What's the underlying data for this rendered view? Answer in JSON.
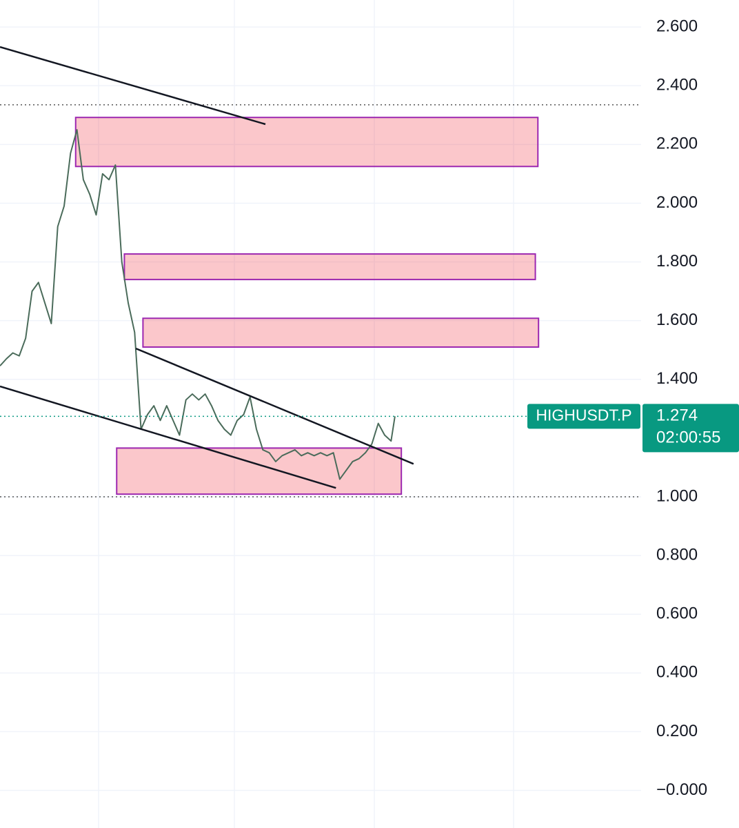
{
  "chart_data": {
    "type": "line",
    "x": [
      0,
      1,
      2,
      3,
      4,
      5,
      6,
      7,
      8,
      9,
      10,
      11,
      12,
      13,
      14,
      15,
      16,
      17,
      18,
      19,
      20,
      21,
      22,
      23,
      24,
      25,
      26,
      27,
      28,
      29,
      30,
      31,
      32,
      33,
      34,
      35,
      36,
      37,
      38,
      39,
      40,
      41,
      42,
      43,
      44,
      45,
      46,
      47,
      48,
      49,
      50,
      51,
      52,
      53,
      54,
      55,
      56,
      57,
      58,
      59,
      60,
      61,
      61.6
    ],
    "series": [
      {
        "name": "HIGHUSDT.P",
        "color": "#4a6b5a",
        "values": [
          1.446,
          1.47,
          1.49,
          1.48,
          1.54,
          1.7,
          1.73,
          1.66,
          1.59,
          1.92,
          1.99,
          2.17,
          2.25,
          2.08,
          2.03,
          1.96,
          2.1,
          2.08,
          2.13,
          1.8,
          1.66,
          1.56,
          1.23,
          1.28,
          1.31,
          1.26,
          1.31,
          1.26,
          1.21,
          1.33,
          1.35,
          1.33,
          1.35,
          1.31,
          1.26,
          1.23,
          1.21,
          1.26,
          1.28,
          1.34,
          1.23,
          1.16,
          1.15,
          1.12,
          1.14,
          1.15,
          1.16,
          1.14,
          1.15,
          1.14,
          1.15,
          1.14,
          1.15,
          1.06,
          1.09,
          1.12,
          1.13,
          1.15,
          1.18,
          1.25,
          1.21,
          1.19,
          1.274
        ]
      }
    ],
    "xlim": [
      0,
      100
    ],
    "ylim": [
      -0.128,
      2.692
    ],
    "yticks": [
      {
        "value": 2.6,
        "label": "2.600"
      },
      {
        "value": 2.4,
        "label": "2.400"
      },
      {
        "value": 2.2,
        "label": "2.200"
      },
      {
        "value": 2.0,
        "label": "2.000"
      },
      {
        "value": 1.8,
        "label": "1.800"
      },
      {
        "value": 1.6,
        "label": "1.600"
      },
      {
        "value": 1.4,
        "label": "1.400"
      },
      {
        "value": 1.0,
        "label": "1.000"
      },
      {
        "value": 0.8,
        "label": "0.800"
      },
      {
        "value": 0.6,
        "label": "0.600"
      },
      {
        "value": 0.4,
        "label": "0.400"
      },
      {
        "value": 0.2,
        "label": "0.200"
      },
      {
        "value": 0,
        "label": "−0.000"
      }
    ],
    "grid": true,
    "reference_lines": [
      2.335,
      1.0
    ],
    "last_price": {
      "value": 1.274,
      "label": "1.274",
      "countdown": "02:00:55"
    },
    "zones": [
      {
        "x": [
          11.8,
          83.9
        ],
        "y": [
          2.125,
          2.292
        ]
      },
      {
        "x": [
          19.4,
          83.5
        ],
        "y": [
          1.74,
          1.827
        ]
      },
      {
        "x": [
          22.3,
          84.0
        ],
        "y": [
          1.51,
          1.608
        ]
      },
      {
        "x": [
          18.2,
          62.6
        ],
        "y": [
          1.009,
          1.166
        ]
      }
    ],
    "trendlines": [
      {
        "x": [
          0,
          41.4
        ],
        "y": [
          2.532,
          2.269
        ]
      },
      {
        "x": [
          21.2,
          64.5
        ],
        "y": [
          1.505,
          1.112
        ]
      },
      {
        "x": [
          0,
          52.4
        ],
        "y": [
          1.376,
          1.03
        ]
      }
    ]
  }
}
